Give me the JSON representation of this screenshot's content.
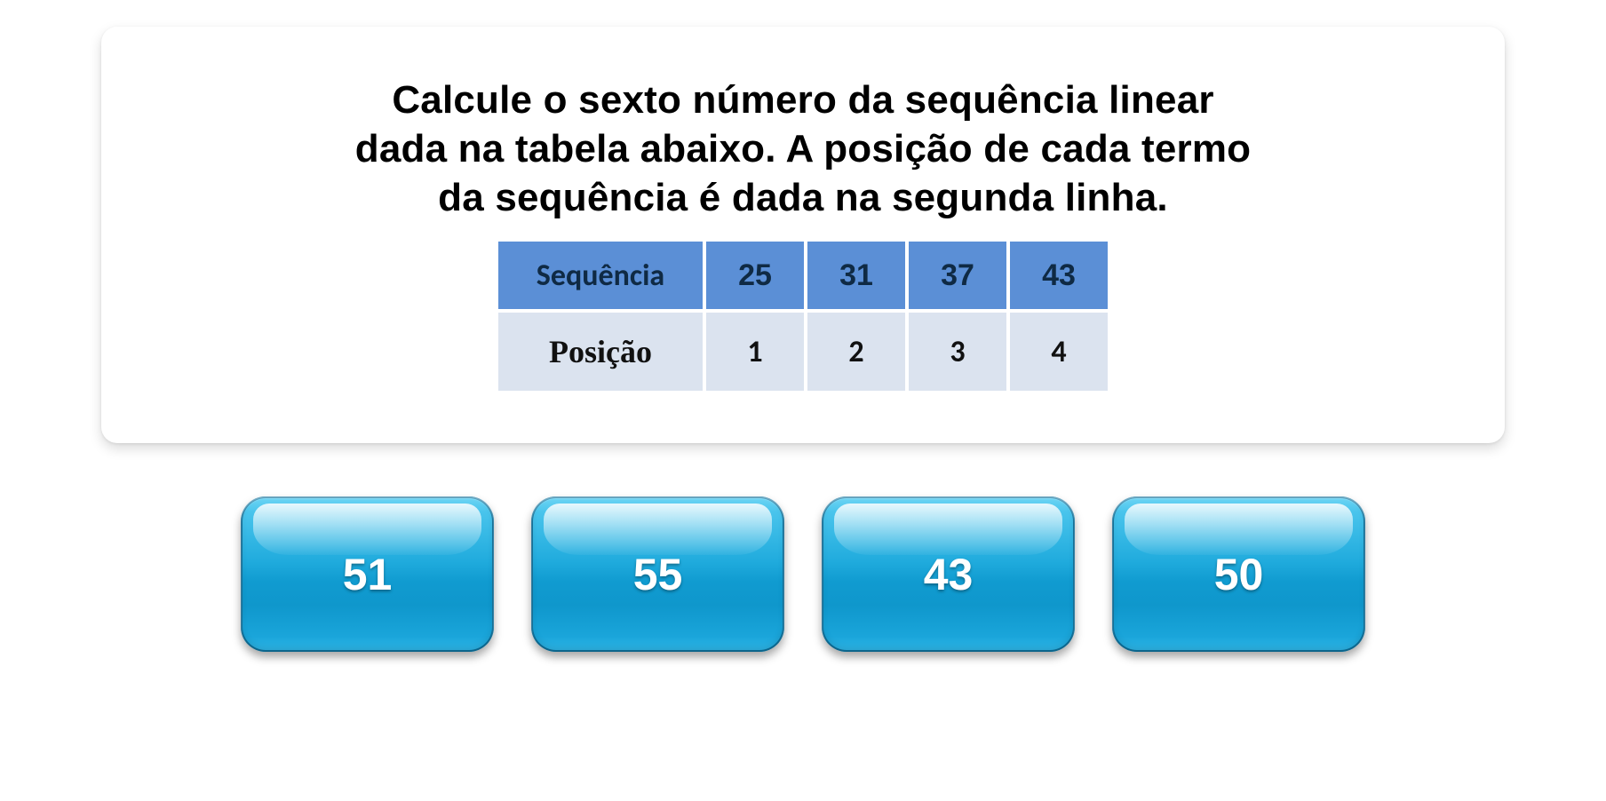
{
  "question": {
    "line1": "Calcule o sexto número da sequência linear",
    "line2": "dada na tabela abaixo. A posição de cada termo",
    "line3": "da sequência é dada na segunda linha."
  },
  "table": {
    "header_label": "Sequência",
    "header_values": [
      "25",
      "31",
      "37",
      "43"
    ],
    "row_label": "Posição",
    "row_values": [
      "1",
      "2",
      "3",
      "4"
    ],
    "header_bg": "#5b8fd6",
    "row_bg": "#dbe3ef",
    "border_spacing": 4
  },
  "answers": [
    "51",
    "55",
    "43",
    "50"
  ],
  "styles": {
    "card_bg": "#ffffff",
    "question_color": "#000000",
    "question_fontsize": 44,
    "answer_btn_gradient_top": "#6fd6f5",
    "answer_btn_gradient_bottom": "#2fb6e7",
    "answer_text_color": "#ffffff",
    "answer_fontsize": 50
  }
}
